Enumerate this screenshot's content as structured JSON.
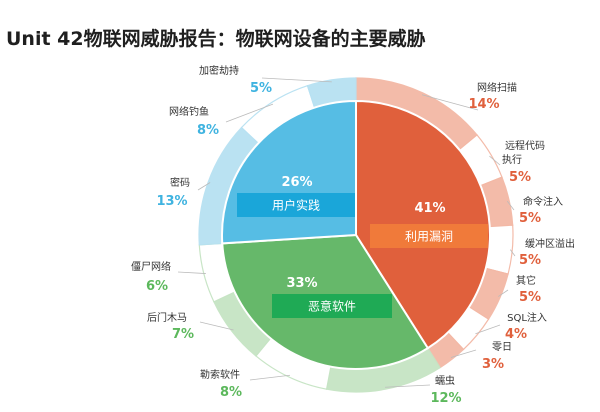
{
  "title": "Unit 42物联网威胁报告：物联网设备的主要威胁",
  "chart_data": {
    "type": "pie",
    "title": "Unit 42物联网威胁报告：物联网设备的主要威胁",
    "categories": [
      {
        "name": "利用漏洞",
        "value": 41,
        "label": "41%",
        "color": "#e0603c",
        "light_color": "#f3b8a5",
        "text_color": "#e0603c"
      },
      {
        "name": "恶意软件",
        "value": 33,
        "label": "33%",
        "color": "#66b86a",
        "light_color": "#c6e4c4",
        "text_color": "#5cb85c"
      },
      {
        "name": "用户实践",
        "value": 26,
        "label": "26%",
        "color": "#56bde4",
        "light_color": "#b7e1f2",
        "text_color": "#3fb3e0"
      }
    ],
    "subcategories": [
      {
        "name": "网络扫描",
        "value": 14,
        "label": "14%",
        "parent": "利用漏洞"
      },
      {
        "name": "远程代码执行",
        "value": 5,
        "label": "5%",
        "parent": "利用漏洞"
      },
      {
        "name": "命令注入",
        "value": 5,
        "label": "5%",
        "parent": "利用漏洞"
      },
      {
        "name": "缓冲区溢出",
        "value": 5,
        "label": "5%",
        "parent": "利用漏洞"
      },
      {
        "name": "其它",
        "value": 5,
        "label": "5%",
        "parent": "利用漏洞"
      },
      {
        "name": "SQL注入",
        "value": 4,
        "label": "4%",
        "parent": "利用漏洞"
      },
      {
        "name": "零日",
        "value": 3,
        "label": "3%",
        "parent": "利用漏洞"
      },
      {
        "name": "蠕虫",
        "value": 12,
        "label": "12%",
        "parent": "恶意软件"
      },
      {
        "name": "勒索软件",
        "value": 8,
        "label": "8%",
        "parent": "恶意软件"
      },
      {
        "name": "后门木马",
        "value": 7,
        "label": "7%",
        "parent": "恶意软件"
      },
      {
        "name": "僵尸网络",
        "value": 6,
        "label": "6%",
        "parent": "恶意软件"
      },
      {
        "name": "密码",
        "value": 13,
        "label": "13%",
        "parent": "用户实践"
      },
      {
        "name": "网络钓鱼",
        "value": 8,
        "label": "8%",
        "parent": "用户实践"
      },
      {
        "name": "加密劫持",
        "value": 5,
        "label": "5%",
        "parent": "用户实践"
      }
    ]
  }
}
